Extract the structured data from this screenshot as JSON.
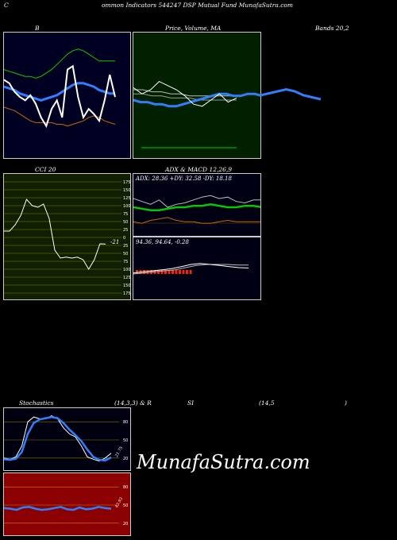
{
  "header": {
    "c": "C",
    "title": "ommon  Indicators 544247 DSP Mutual Fund MunafaSutra.com"
  },
  "labels": {
    "b": "B",
    "price_volume_ma": "Price,  Volume,  MA",
    "bands": "Bands 20,2",
    "cci": "CCI 20",
    "adx_macd": "ADX  & MACD 12,26,9",
    "stoch_left": "Stochastics",
    "stoch_mid": "(14,3,3) & R",
    "rsi_si": "SI",
    "rsi_params": "(14,5",
    "rsi_close": ")"
  },
  "adx_readout": "ADX: 28.36  +DY: 32.58  -DY: 18.18",
  "macd_readout": "94.36,  94.64,  -0.28",
  "cci_value": "-21",
  "stoch_value": "21.75",
  "rsi_value": "43.93",
  "watermark": "MunafaSutra.com",
  "colors": {
    "bollinger_bg": "#000022",
    "price_bg": "#002000",
    "cci_bg": "#0f1f00",
    "adx_bg": "#000014",
    "stoch_bg": "#000011",
    "rsi_bg": "#8b0000",
    "blue_line": "#2f7fff",
    "green_line": "#00cc00",
    "orange_line": "#cc6600",
    "white_line": "#ffffff"
  },
  "chart_data": [
    {
      "type": "line",
      "name": "bollinger",
      "series": [
        {
          "values": [
            82,
            80,
            75,
            72,
            70,
            73,
            68,
            60,
            55,
            65,
            70,
            60,
            88,
            90,
            72,
            60,
            65,
            62,
            58,
            70,
            85,
            72
          ]
        },
        {
          "values": [
            78,
            77,
            76,
            74,
            73,
            72,
            71,
            70,
            71,
            72,
            73,
            75,
            77,
            79,
            80,
            80,
            79,
            78,
            76,
            75,
            74,
            74
          ]
        },
        {
          "values": [
            88,
            87,
            86,
            85,
            84,
            84,
            83,
            84,
            86,
            88,
            91,
            94,
            97,
            99,
            100,
            99,
            97,
            95,
            93,
            93,
            93,
            93
          ]
        },
        {
          "values": [
            66,
            65,
            64,
            62,
            60,
            58,
            57,
            57,
            57,
            57,
            56,
            56,
            55,
            56,
            57,
            58,
            60,
            61,
            60,
            58,
            57,
            56
          ]
        }
      ]
    },
    {
      "type": "line",
      "name": "price_ma",
      "series": [
        {
          "values": [
            61,
            58,
            60,
            64,
            62,
            60,
            57,
            53,
            52,
            55,
            58,
            54,
            56
          ]
        },
        {
          "values": [
            60,
            60,
            59,
            59,
            58,
            58,
            57,
            57,
            57,
            57,
            57,
            57
          ]
        },
        {
          "values": [
            58,
            58,
            57,
            57,
            56,
            56,
            56,
            55,
            55,
            55,
            55,
            55
          ]
        },
        {
          "values": [
            55,
            54,
            54,
            53,
            53,
            52,
            52,
            53,
            54,
            55,
            56,
            57,
            58,
            58,
            57,
            57,
            58,
            58,
            57
          ]
        }
      ]
    },
    {
      "type": "line",
      "name": "cci",
      "ylim": [
        -175,
        175
      ],
      "y_ticks": [
        175,
        150,
        125,
        100,
        75,
        50,
        25,
        0,
        -25,
        -50,
        -75,
        -100,
        -125,
        -150,
        -175
      ],
      "y_tick_labels": [
        "175",
        "150",
        "125",
        "100",
        "75",
        "50",
        "25",
        "0",
        "25",
        "50",
        "75",
        "100",
        "125",
        "150",
        "175"
      ],
      "series": [
        {
          "values": [
            20,
            20,
            40,
            70,
            120,
            100,
            95,
            105,
            60,
            -40,
            -65,
            -62,
            -65,
            -62,
            -70,
            -100,
            -70,
            -20,
            -21
          ]
        }
      ]
    },
    {
      "type": "line",
      "name": "adx",
      "series": [
        {
          "name": "ADX",
          "values": [
            28,
            27,
            26,
            26,
            27,
            28,
            28,
            29,
            29,
            30,
            29,
            28,
            28,
            29,
            29,
            28
          ]
        },
        {
          "name": "+DY",
          "values": [
            34,
            32,
            30,
            33,
            28,
            30,
            31,
            33,
            35,
            36,
            34,
            35,
            32,
            31,
            33,
            33
          ]
        },
        {
          "name": "-DY",
          "values": [
            18,
            17,
            19,
            20,
            21,
            19,
            18,
            18,
            17,
            17,
            18,
            19,
            18,
            18,
            18,
            18
          ]
        }
      ]
    },
    {
      "type": "line",
      "name": "macd",
      "series": [
        {
          "values": [
            93.9,
            94.0,
            94.1,
            94.2,
            94.3,
            94.5,
            94.7,
            94.8,
            94.7,
            94.6,
            94.5,
            94.4,
            94.36
          ]
        },
        {
          "values": [
            93.8,
            93.9,
            94.0,
            94.1,
            94.2,
            94.4,
            94.6,
            94.7,
            94.7,
            94.7,
            94.65,
            94.64
          ]
        }
      ]
    },
    {
      "type": "line",
      "name": "stochastics",
      "ylim": [
        0,
        100
      ],
      "y_ticks": [
        80,
        50,
        20
      ],
      "y_tick_labels": [
        "80",
        "50",
        "20"
      ],
      "series": [
        {
          "values": [
            20,
            18,
            22,
            40,
            80,
            88,
            85,
            85,
            90,
            85,
            70,
            60,
            55,
            40,
            22,
            18,
            15,
            20,
            28
          ]
        },
        {
          "values": [
            18,
            17,
            19,
            30,
            60,
            78,
            84,
            86,
            88,
            86,
            78,
            67,
            58,
            48,
            34,
            22,
            17,
            16,
            21
          ]
        }
      ]
    },
    {
      "type": "line",
      "name": "rsi",
      "ylim": [
        0,
        100
      ],
      "y_ticks": [
        80,
        50,
        20
      ],
      "y_tick_labels": [
        "80",
        "50",
        "20"
      ],
      "series": [
        {
          "values": [
            45,
            44,
            42,
            46,
            47,
            44,
            42,
            43,
            45,
            47,
            43,
            42,
            46,
            43,
            44,
            47,
            45,
            44
          ]
        }
      ]
    }
  ]
}
